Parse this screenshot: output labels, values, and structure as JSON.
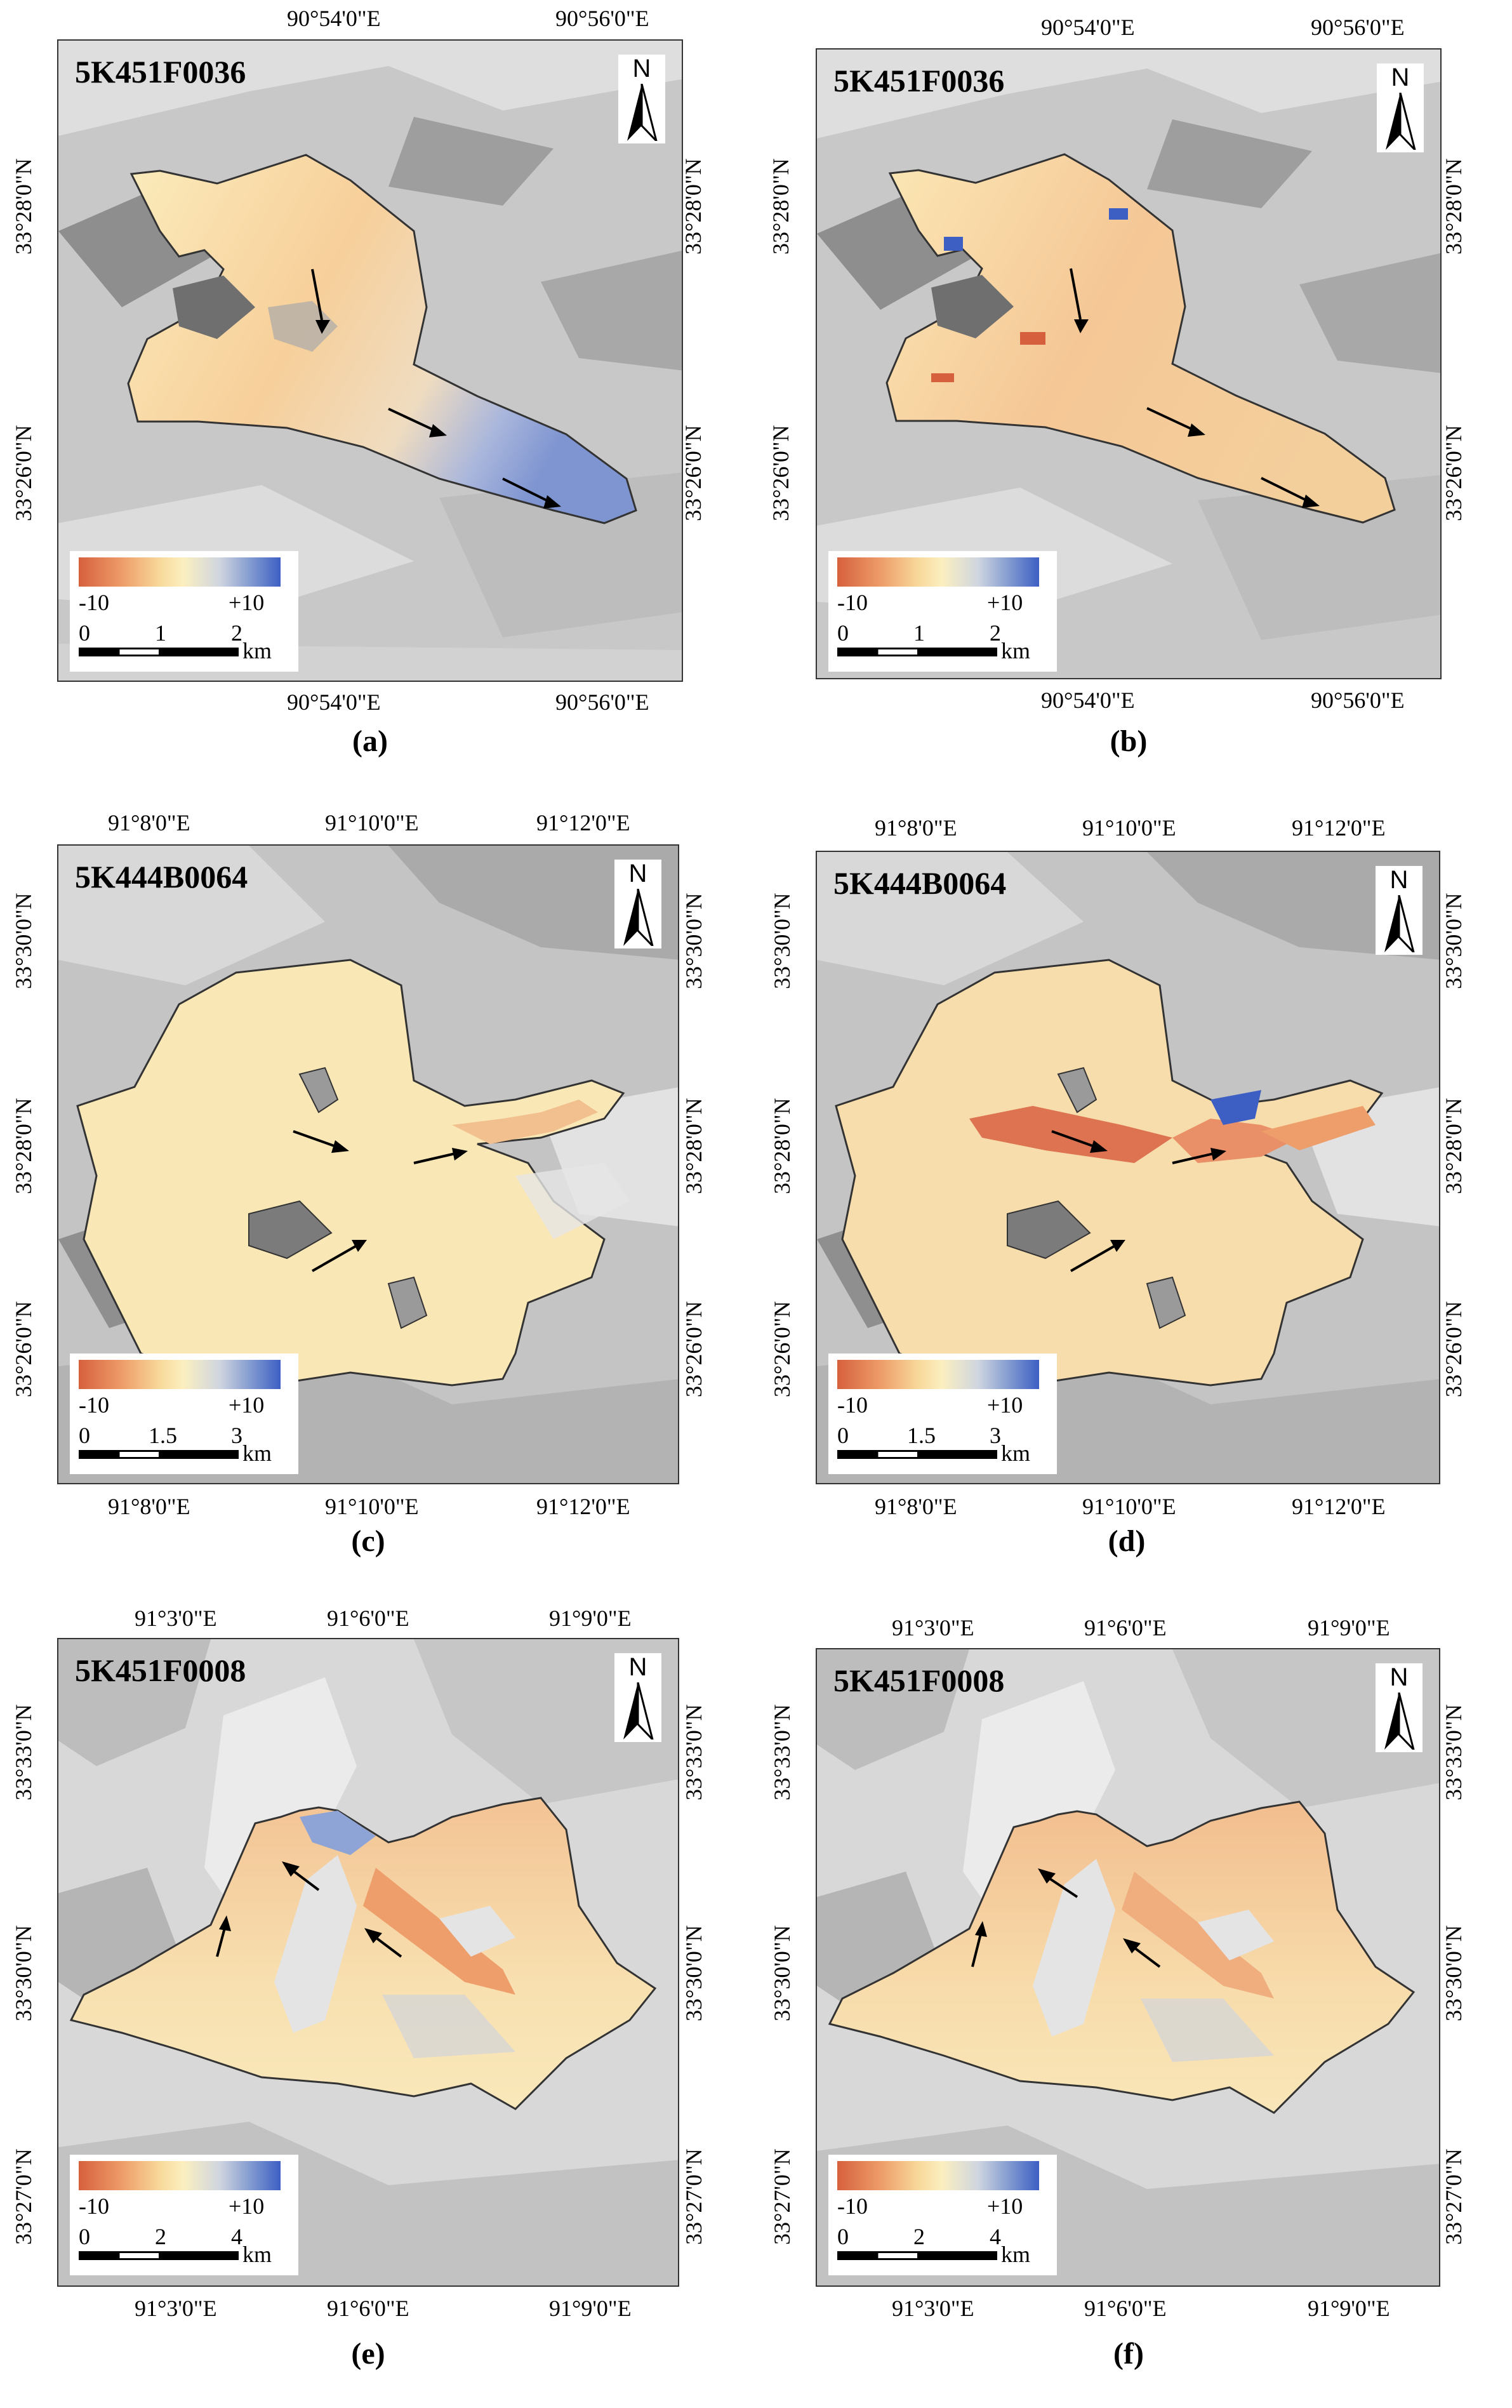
{
  "colorbar": {
    "min_label": "-10",
    "max_label": "+10"
  },
  "north_label": "N",
  "colors": {
    "hillshade": "#c8c8c8",
    "glacier_base": "#f9e4ae",
    "negative": "#d6603d",
    "positive": "#3d5fc4"
  },
  "panels": [
    {
      "caption": "(a)",
      "id": "5K451F0036",
      "top_labels": [
        "90°54'0\"E",
        "90°56'0\"E"
      ],
      "bottom_labels": [
        "90°54'0\"E",
        "90°56'0\"E"
      ],
      "left_labels": [
        "33°28'0\"N",
        "33°26'0\"N"
      ],
      "right_labels": [
        "33°28'0\"N",
        "33°26'0\"N"
      ],
      "scale": {
        "ticks": [
          "0",
          "1",
          "2"
        ],
        "unit": "km"
      }
    },
    {
      "caption": "(b)",
      "id": "5K451F0036",
      "top_labels": [
        "90°54'0\"E",
        "90°56'0\"E"
      ],
      "bottom_labels": [
        "90°54'0\"E",
        "90°56'0\"E"
      ],
      "left_labels": [
        "33°28'0\"N",
        "33°26'0\"N"
      ],
      "right_labels": [
        "33°28'0\"N",
        "33°26'0\"N"
      ],
      "scale": {
        "ticks": [
          "0",
          "1",
          "2"
        ],
        "unit": "km"
      }
    },
    {
      "caption": "(c)",
      "id": "5K444B0064",
      "top_labels": [
        "91°8'0\"E",
        "91°10'0\"E",
        "91°12'0\"E"
      ],
      "bottom_labels": [
        "91°8'0\"E",
        "91°10'0\"E",
        "91°12'0\"E"
      ],
      "left_labels": [
        "33°30'0\"N",
        "33°28'0\"N",
        "33°26'0\"N"
      ],
      "right_labels": [
        "33°30'0\"N",
        "33°28'0\"N",
        "33°26'0\"N"
      ],
      "scale": {
        "ticks": [
          "0",
          "1.5",
          "3"
        ],
        "unit": "km"
      }
    },
    {
      "caption": "(d)",
      "id": "5K444B0064",
      "top_labels": [
        "91°8'0\"E",
        "91°10'0\"E",
        "91°12'0\"E"
      ],
      "bottom_labels": [
        "91°8'0\"E",
        "91°10'0\"E",
        "91°12'0\"E"
      ],
      "left_labels": [
        "33°30'0\"N",
        "33°28'0\"N",
        "33°26'0\"N"
      ],
      "right_labels": [
        "33°30'0\"N",
        "33°28'0\"N",
        "33°26'0\"N"
      ],
      "scale": {
        "ticks": [
          "0",
          "1.5",
          "3"
        ],
        "unit": "km"
      }
    },
    {
      "caption": "(e)",
      "id": "5K451F0008",
      "top_labels": [
        "91°3'0\"E",
        "91°6'0\"E",
        "91°9'0\"E"
      ],
      "bottom_labels": [
        "91°3'0\"E",
        "91°6'0\"E",
        "91°9'0\"E"
      ],
      "left_labels": [
        "33°33'0\"N",
        "33°30'0\"N",
        "33°27'0\"N"
      ],
      "right_labels": [
        "33°33'0\"N",
        "33°30'0\"N",
        "33°27'0\"N"
      ],
      "scale": {
        "ticks": [
          "0",
          "2",
          "4"
        ],
        "unit": "km"
      }
    },
    {
      "caption": "(f)",
      "id": "5K451F0008",
      "top_labels": [
        "91°3'0\"E",
        "91°6'0\"E",
        "91°9'0\"E"
      ],
      "bottom_labels": [
        "91°3'0\"E",
        "91°6'0\"E",
        "91°9'0\"E"
      ],
      "left_labels": [
        "33°33'0\"N",
        "33°30'0\"N",
        "33°27'0\"N"
      ],
      "right_labels": [
        "33°33'0\"N",
        "33°30'0\"N",
        "33°27'0\"N"
      ],
      "scale": {
        "ticks": [
          "0",
          "2",
          "4"
        ],
        "unit": "km"
      }
    }
  ]
}
